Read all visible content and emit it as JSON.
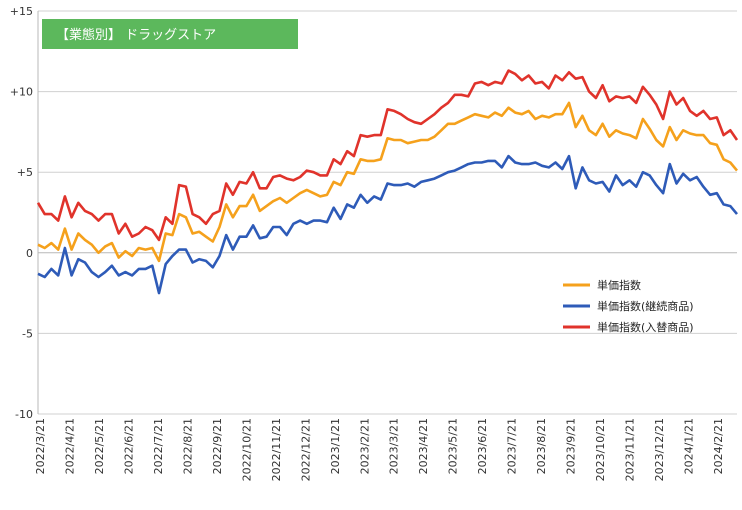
{
  "chart_data": {
    "type": "line",
    "title": "【業態別】 ドラッグストア",
    "title_bg": "#5cb85c",
    "ylim": [
      -10,
      15
    ],
    "yticks": [
      {
        "value": 15,
        "label": "+15"
      },
      {
        "value": 10,
        "label": "+10"
      },
      {
        "value": 5,
        "label": "+5"
      },
      {
        "value": 0,
        "label": "0"
      },
      {
        "value": -5,
        "label": "-5"
      },
      {
        "value": -10,
        "label": "-10"
      }
    ],
    "grid": true,
    "legend_position": "right-middle",
    "x_tick_labels": [
      "2022/3/21",
      "2022/4/21",
      "2022/5/21",
      "2022/6/21",
      "2022/7/21",
      "2022/8/21",
      "2022/9/21",
      "2022/10/21",
      "2022/11/21",
      "2022/12/21",
      "2023/1/21",
      "2023/2/21",
      "2023/3/21",
      "2023/4/21",
      "2023/5/21",
      "2023/6/21",
      "2023/7/21",
      "2023/8/21",
      "2023/9/21",
      "2023/10/21",
      "2023/11/21",
      "2023/12/21",
      "2024/1/21",
      "2024/2/21"
    ],
    "series": [
      {
        "name": "単価指数(入替商品)",
        "color": "#e0332b",
        "values": [
          3.1,
          2.4,
          2.4,
          2.0,
          3.5,
          2.2,
          3.1,
          2.6,
          2.4,
          2.0,
          2.4,
          2.4,
          1.2,
          1.8,
          1.0,
          1.2,
          1.6,
          1.4,
          0.8,
          2.2,
          1.8,
          4.2,
          4.1,
          2.4,
          2.2,
          1.8,
          2.4,
          2.6,
          4.3,
          3.6,
          4.4,
          4.3,
          5.0,
          4.0,
          4.0,
          4.7,
          4.8,
          4.6,
          4.5,
          4.7,
          5.1,
          5.0,
          4.8,
          4.8,
          5.8,
          5.5,
          6.3,
          6.0,
          7.3,
          7.2,
          7.3,
          7.3,
          8.9,
          8.8,
          8.6,
          8.3,
          8.1,
          8.0,
          8.3,
          8.6,
          9.0,
          9.3,
          9.8,
          9.8,
          9.7,
          10.5,
          10.6,
          10.4,
          10.6,
          10.5,
          11.3,
          11.1,
          10.7,
          11.0,
          10.5,
          10.6,
          10.2,
          11.0,
          10.7,
          11.2,
          10.8,
          10.9,
          10.0,
          9.6,
          10.4,
          9.4,
          9.7,
          9.6,
          9.7,
          9.3,
          10.3,
          9.8,
          9.2,
          8.3,
          10.0,
          9.2,
          9.6,
          8.8,
          8.5,
          8.8,
          8.3,
          8.4,
          7.3,
          7.6,
          7.0
        ],
        "data_labels": []
      },
      {
        "name": "単価指数",
        "color": "#f5a11c",
        "values": [
          0.5,
          0.3,
          0.6,
          0.2,
          1.5,
          0.2,
          1.2,
          0.8,
          0.5,
          0.0,
          0.4,
          0.6,
          -0.3,
          0.1,
          -0.2,
          0.3,
          0.2,
          0.3,
          -0.5,
          1.2,
          1.1,
          2.4,
          2.2,
          1.2,
          1.3,
          1.0,
          0.7,
          1.6,
          3.0,
          2.2,
          2.9,
          2.9,
          3.6,
          2.6,
          2.9,
          3.2,
          3.4,
          3.1,
          3.4,
          3.7,
          3.9,
          3.7,
          3.5,
          3.6,
          4.4,
          4.2,
          5.0,
          4.9,
          5.8,
          5.7,
          5.7,
          5.8,
          7.1,
          7.0,
          7.0,
          6.8,
          6.9,
          7.0,
          7.0,
          7.2,
          7.6,
          8.0,
          8.0,
          8.2,
          8.4,
          8.6,
          8.5,
          8.4,
          8.7,
          8.5,
          9.0,
          8.7,
          8.6,
          8.8,
          8.3,
          8.5,
          8.4,
          8.6,
          8.6,
          9.3,
          7.8,
          8.5,
          7.6,
          7.3,
          8.0,
          7.2,
          7.6,
          7.4,
          7.3,
          7.1,
          8.3,
          7.7,
          7.0,
          6.6,
          7.8,
          7.0,
          7.6,
          7.4,
          7.3,
          7.3,
          6.8,
          6.7,
          5.8,
          5.6,
          5.1
        ],
        "data_labels": []
      },
      {
        "name": "単価指数(継続商品)",
        "color": "#2e5bb8",
        "values": [
          -1.3,
          -1.5,
          -1.0,
          -1.4,
          0.3,
          -1.4,
          -0.4,
          -0.6,
          -1.2,
          -1.5,
          -1.2,
          -0.8,
          -1.4,
          -1.2,
          -1.4,
          -1.0,
          -1.0,
          -0.8,
          -2.5,
          -0.7,
          -0.2,
          0.2,
          0.2,
          -0.6,
          -0.4,
          -0.5,
          -0.9,
          -0.2,
          1.1,
          0.2,
          1.0,
          1.0,
          1.7,
          0.9,
          1.0,
          1.6,
          1.6,
          1.1,
          1.8,
          2.0,
          1.8,
          2.0,
          2.0,
          1.9,
          2.8,
          2.1,
          3.0,
          2.8,
          3.6,
          3.1,
          3.5,
          3.3,
          4.3,
          4.2,
          4.2,
          4.3,
          4.1,
          4.4,
          4.5,
          4.6,
          4.8,
          5.0,
          5.1,
          5.3,
          5.5,
          5.6,
          5.6,
          5.7,
          5.7,
          5.3,
          6.0,
          5.6,
          5.5,
          5.5,
          5.6,
          5.4,
          5.3,
          5.6,
          5.2,
          6.0,
          4.0,
          5.3,
          4.5,
          4.3,
          4.4,
          3.8,
          4.8,
          4.2,
          4.5,
          4.1,
          5.0,
          4.8,
          4.2,
          3.7,
          5.5,
          4.3,
          4.9,
          4.5,
          4.7,
          4.1,
          3.6,
          3.7,
          3.0,
          2.9,
          2.4
        ],
        "data_labels": []
      }
    ],
    "legend": [
      {
        "name": "単価指数",
        "color": "#f5a11c"
      },
      {
        "name": "単価指数(継続商品)",
        "color": "#2e5bb8"
      },
      {
        "name": "単価指数(入替商品)",
        "color": "#e0332b"
      }
    ]
  }
}
